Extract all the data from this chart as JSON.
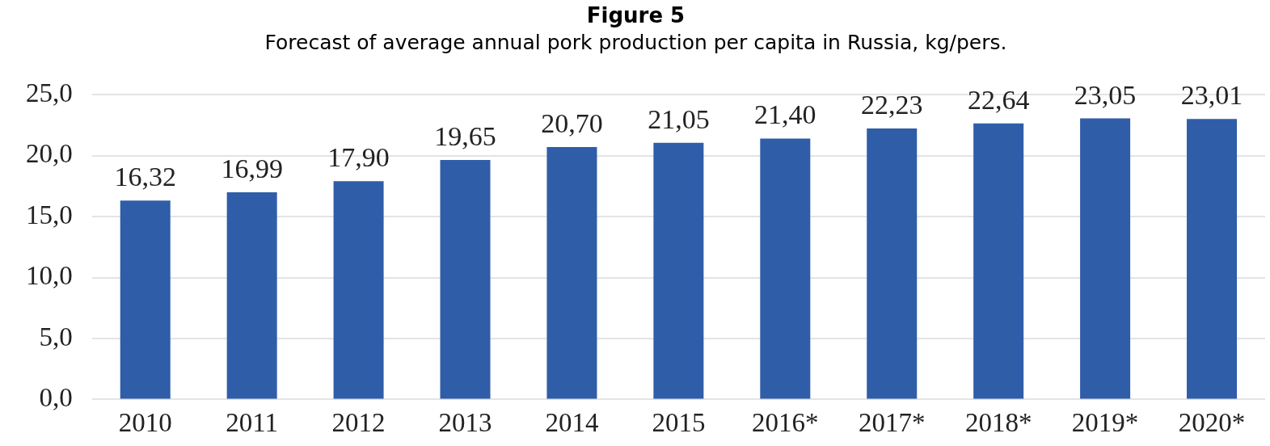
{
  "chart_data": {
    "type": "bar",
    "title": "Figure 5",
    "subtitle": "Forecast of average annual pork production per capita in Russia, kg/pers.",
    "categories": [
      "2010",
      "2011",
      "2012",
      "2013",
      "2014",
      "2015",
      "2016*",
      "2017*",
      "2018*",
      "2019*",
      "2020*"
    ],
    "values": [
      16.32,
      16.99,
      17.9,
      19.65,
      20.7,
      21.05,
      21.4,
      22.23,
      22.64,
      23.05,
      23.01
    ],
    "value_labels": [
      "16,32",
      "16,99",
      "17,90",
      "19,65",
      "20,70",
      "21,05",
      "21,40",
      "22,23",
      "22,64",
      "23,05",
      "23,01"
    ],
    "color": "#2f5da8",
    "ylim": [
      0,
      25
    ],
    "yticks": [
      {
        "value": 0,
        "label": "0,0"
      },
      {
        "value": 5,
        "label": "5,0"
      },
      {
        "value": 10,
        "label": "10,0"
      },
      {
        "value": 15,
        "label": "15,0"
      },
      {
        "value": 20,
        "label": "20,0"
      },
      {
        "value": 25,
        "label": "25,0"
      }
    ],
    "grid": "y",
    "legend": false
  }
}
